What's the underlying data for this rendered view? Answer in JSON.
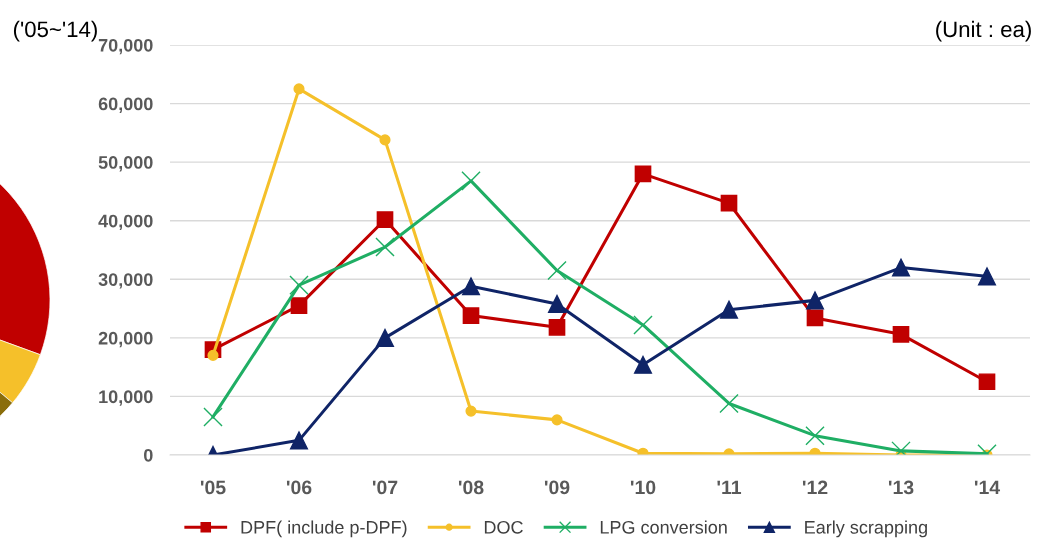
{
  "chart_data": {
    "type": "line",
    "annotations": [
      "('05~'14)",
      "(Unit : ea)"
    ],
    "categories": [
      "'05",
      "'06",
      "'07",
      "'08",
      "'09",
      "'10",
      "'11",
      "'12",
      "'13",
      "'14"
    ],
    "series": [
      {
        "name": "DPF( include p-DPF)",
        "color": "#c00000",
        "marker": "square",
        "values": [
          18000,
          25500,
          40200,
          23800,
          21800,
          48000,
          43000,
          23400,
          20600,
          12500
        ]
      },
      {
        "name": "DOC",
        "color": "#f5c02a",
        "marker": "circle",
        "values": [
          17000,
          62500,
          53800,
          7500,
          6000,
          300,
          200,
          300,
          0,
          0
        ]
      },
      {
        "name": "LPG conversion",
        "color": "#1fae64",
        "marker": "cross",
        "values": [
          6500,
          29000,
          35500,
          46800,
          31500,
          22200,
          8800,
          3300,
          700,
          200
        ]
      },
      {
        "name": "Early scrapping",
        "color": "#0f2467",
        "marker": "triangle",
        "values": [
          0,
          2500,
          20000,
          28800,
          25800,
          15400,
          24800,
          26400,
          32000,
          30500
        ]
      }
    ],
    "ylim": [
      0,
      70000
    ],
    "yticks": [
      {
        "value": 0,
        "label": "0"
      },
      {
        "value": 10000,
        "label": "10,000"
      },
      {
        "value": 20000,
        "label": "20,000"
      },
      {
        "value": 30000,
        "label": "30,000"
      },
      {
        "value": 40000,
        "label": "40,000"
      },
      {
        "value": 50000,
        "label": "50,000"
      },
      {
        "value": 60000,
        "label": "60,000"
      },
      {
        "value": 70000,
        "label": "70,000"
      }
    ],
    "grid": "y",
    "legend": "bottom",
    "line_style": "solid"
  }
}
